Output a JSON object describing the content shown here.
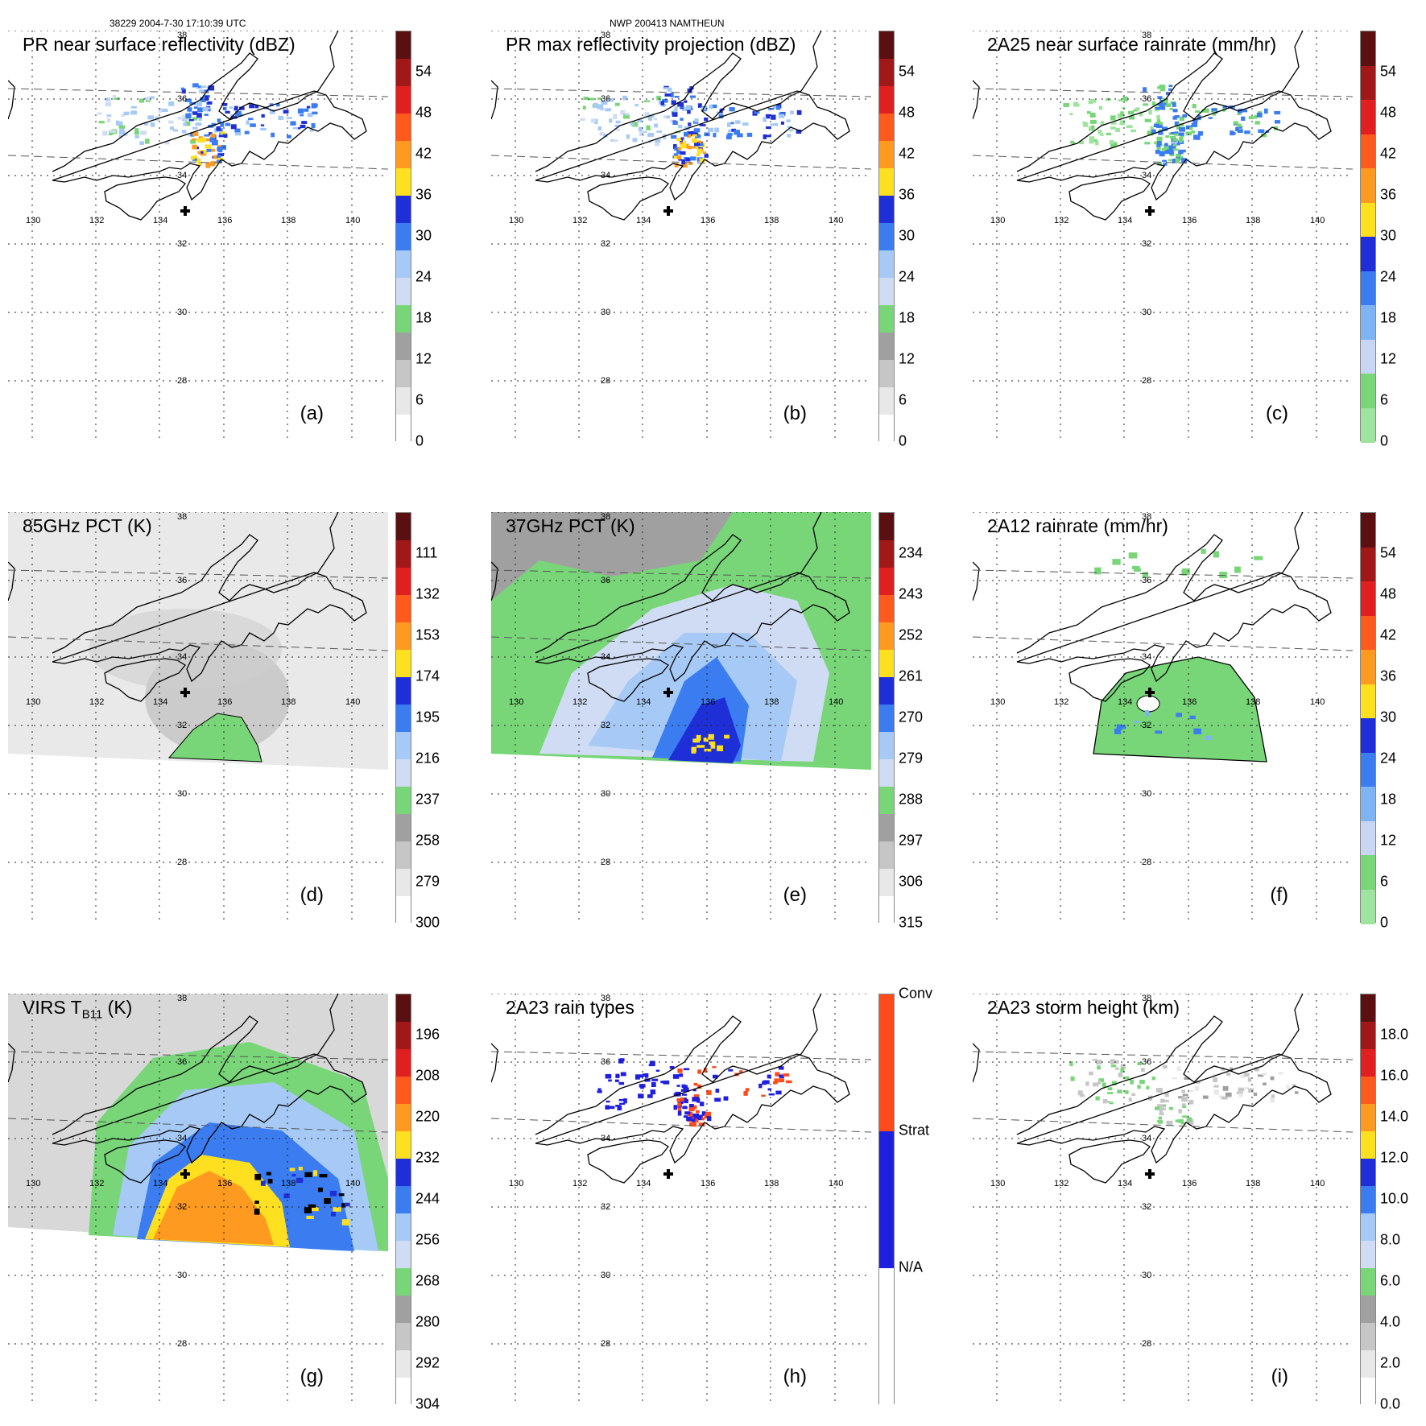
{
  "header": {
    "left": "38229 2004-7-30 17:10:39 UTC",
    "center": "NWP 200413 NAMTHEUN"
  },
  "lon_labels": [
    "130",
    "132",
    "134",
    "136",
    "138",
    "140"
  ],
  "lat_labels": [
    "38",
    "36",
    "34",
    "32",
    "30",
    "28"
  ],
  "panels": [
    {
      "title": "PR near surface reflectivity (dBZ)",
      "label": "(a)",
      "style": "refl",
      "ticks": [
        "54",
        "48",
        "42",
        "36",
        "30",
        "24",
        "18",
        "12",
        "6",
        "0"
      ],
      "colors": [
        "#5a1010",
        "#a01818",
        "#e02020",
        "#ff5a1e",
        "#ff9a20",
        "#ffe020",
        "#1f2fd8",
        "#3b7df0",
        "#a6caf5",
        "#cfdcf3",
        "#78d678",
        "#a0a0a0",
        "#c6c6c6",
        "#e8e8e8",
        "#ffffff"
      ]
    },
    {
      "title": "PR max reflectivity projection (dBZ)",
      "label": "(b)",
      "style": "refl",
      "ticks": [
        "54",
        "48",
        "42",
        "36",
        "30",
        "24",
        "18",
        "12",
        "6",
        "0"
      ],
      "colors": [
        "#5a1010",
        "#a01818",
        "#e02020",
        "#ff5a1e",
        "#ff9a20",
        "#ffe020",
        "#1f2fd8",
        "#3b7df0",
        "#a6caf5",
        "#cfdcf3",
        "#78d678",
        "#a0a0a0",
        "#c6c6c6",
        "#e8e8e8",
        "#ffffff"
      ]
    },
    {
      "title": "2A25 near surface rainrate (mm/hr)",
      "label": "(c)",
      "style": "rain",
      "ticks": [
        "54",
        "48",
        "42",
        "36",
        "30",
        "24",
        "18",
        "12",
        "6",
        "0"
      ],
      "colors": [
        "#5a1010",
        "#a01818",
        "#e02020",
        "#ff5a1e",
        "#ff9a20",
        "#ffe020",
        "#1f2fd8",
        "#3b7df0",
        "#7fb4f2",
        "#c9d6f3",
        "#78d678",
        "#9ee49e"
      ]
    },
    {
      "title": "85GHz PCT (K)",
      "label": "(d)",
      "style": "pct85",
      "ticks": [
        "111",
        "132",
        "153",
        "174",
        "195",
        "216",
        "237",
        "258",
        "279",
        "300"
      ],
      "colors": [
        "#5a1010",
        "#a01818",
        "#e02020",
        "#ff5a1e",
        "#ff9a20",
        "#ffe020",
        "#1f2fd8",
        "#3b7df0",
        "#a6caf5",
        "#cfdcf3",
        "#78d678",
        "#a0a0a0",
        "#c6c6c6",
        "#e8e8e8",
        "#ffffff"
      ]
    },
    {
      "title": "37GHz PCT (K)",
      "label": "(e)",
      "style": "pct37",
      "ticks": [
        "234",
        "243",
        "252",
        "261",
        "270",
        "279",
        "288",
        "297",
        "306",
        "315"
      ],
      "colors": [
        "#5a1010",
        "#a01818",
        "#e02020",
        "#ff5a1e",
        "#ff9a20",
        "#ffe020",
        "#1f2fd8",
        "#3b7df0",
        "#a6caf5",
        "#cfdcf3",
        "#78d678",
        "#a0a0a0",
        "#c6c6c6",
        "#e8e8e8",
        "#ffffff"
      ]
    },
    {
      "title": "2A12 rainrate (mm/hr)",
      "label": "(f)",
      "style": "rain12",
      "ticks": [
        "54",
        "48",
        "42",
        "36",
        "30",
        "24",
        "18",
        "12",
        "6",
        "0"
      ],
      "colors": [
        "#5a1010",
        "#a01818",
        "#e02020",
        "#ff5a1e",
        "#ff9a20",
        "#ffe020",
        "#1f2fd8",
        "#3b7df0",
        "#7fb4f2",
        "#c9d6f3",
        "#78d678",
        "#9ee49e"
      ]
    },
    {
      "title_pre": "VIRS T",
      "title_sub": "B11",
      "title_post": " (K)",
      "label": "(g)",
      "style": "virs",
      "ticks": [
        "196",
        "208",
        "220",
        "232",
        "244",
        "256",
        "268",
        "280",
        "292",
        "304"
      ],
      "colors": [
        "#5a1010",
        "#a01818",
        "#e02020",
        "#ff5a1e",
        "#ff9a20",
        "#ffe020",
        "#1f2fd8",
        "#3b7df0",
        "#a6caf5",
        "#cfdcf3",
        "#78d678",
        "#a0a0a0",
        "#c6c6c6",
        "#e8e8e8",
        "#ffffff"
      ]
    },
    {
      "title": "2A23 rain types",
      "label": "(h)",
      "style": "types",
      "ticks": [
        "Conv",
        "Strat",
        "N/A"
      ],
      "colors": [
        "#ff4a1a",
        "#1f1fe0",
        "#ffffff"
      ]
    },
    {
      "title": "2A23 storm height (km)",
      "label": "(i)",
      "style": "height",
      "ticks": [
        "18.0",
        "16.0",
        "14.0",
        "12.0",
        "10.0",
        "8.0",
        "6.0",
        "4.0",
        "2.0",
        "0.0"
      ],
      "colors": [
        "#5a1010",
        "#a01818",
        "#e02020",
        "#ff5a1e",
        "#ff9a20",
        "#ffe020",
        "#1f2fd8",
        "#3b7df0",
        "#a6caf5",
        "#cfdcf3",
        "#78d678",
        "#a0a0a0",
        "#c6c6c6",
        "#e8e8e8",
        "#ffffff"
      ]
    }
  ]
}
